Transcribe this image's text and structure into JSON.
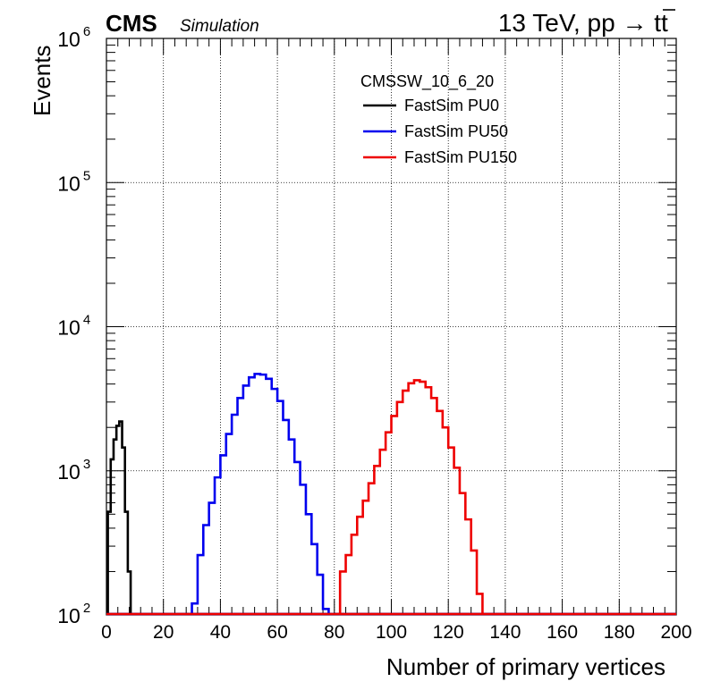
{
  "header": {
    "experiment": "CMS",
    "tag": "Simulation",
    "energy_label": "13 TeV, pp → t",
    "energy_tbar": "t"
  },
  "chart_data": {
    "type": "histogram",
    "xlabel": "Number of primary vertices",
    "ylabel": "Events",
    "xlim": [
      0,
      200
    ],
    "ylim": [
      100,
      1000000
    ],
    "yscale": "log",
    "grid": true,
    "x_ticks": [
      "0",
      "20",
      "40",
      "60",
      "80",
      "100",
      "120",
      "140",
      "160",
      "180",
      "200"
    ],
    "y_ticks": [
      {
        "base": "10",
        "exp": "2"
      },
      {
        "base": "10",
        "exp": "3"
      },
      {
        "base": "10",
        "exp": "4"
      },
      {
        "base": "10",
        "exp": "5"
      },
      {
        "base": "10",
        "exp": "6"
      }
    ],
    "legend": {
      "title": "CMSSW_10_6_20",
      "placement": "top-center"
    },
    "series": [
      {
        "name": "FastSim PU0",
        "color": "#000000",
        "points": [
          [
            1,
            520
          ],
          [
            2,
            1200
          ],
          [
            3,
            1650
          ],
          [
            4,
            2050
          ],
          [
            5,
            2200
          ],
          [
            6,
            1450
          ],
          [
            7,
            520
          ],
          [
            8,
            200
          ]
        ]
      },
      {
        "name": "FastSim PU50",
        "color": "#0000ee",
        "points": [
          [
            31,
            120
          ],
          [
            33,
            260
          ],
          [
            35,
            420
          ],
          [
            37,
            600
          ],
          [
            39,
            900
          ],
          [
            41,
            1280
          ],
          [
            43,
            1800
          ],
          [
            45,
            2450
          ],
          [
            47,
            3200
          ],
          [
            49,
            3900
          ],
          [
            51,
            4450
          ],
          [
            53,
            4700
          ],
          [
            55,
            4650
          ],
          [
            57,
            4350
          ],
          [
            59,
            3700
          ],
          [
            61,
            3050
          ],
          [
            63,
            2250
          ],
          [
            65,
            1650
          ],
          [
            67,
            1150
          ],
          [
            69,
            800
          ],
          [
            71,
            500
          ],
          [
            73,
            310
          ],
          [
            75,
            190
          ],
          [
            77,
            110
          ]
        ]
      },
      {
        "name": "FastSim PU150",
        "color": "#ee0000",
        "points": [
          [
            83,
            200
          ],
          [
            85,
            260
          ],
          [
            87,
            360
          ],
          [
            89,
            480
          ],
          [
            91,
            620
          ],
          [
            93,
            820
          ],
          [
            95,
            1080
          ],
          [
            97,
            1400
          ],
          [
            99,
            1850
          ],
          [
            101,
            2400
          ],
          [
            103,
            3000
          ],
          [
            105,
            3600
          ],
          [
            107,
            4050
          ],
          [
            109,
            4250
          ],
          [
            111,
            4150
          ],
          [
            113,
            3800
          ],
          [
            115,
            3200
          ],
          [
            117,
            2600
          ],
          [
            119,
            2000
          ],
          [
            121,
            1450
          ],
          [
            123,
            1050
          ],
          [
            125,
            700
          ],
          [
            127,
            460
          ],
          [
            129,
            280
          ],
          [
            131,
            140
          ]
        ]
      }
    ]
  }
}
